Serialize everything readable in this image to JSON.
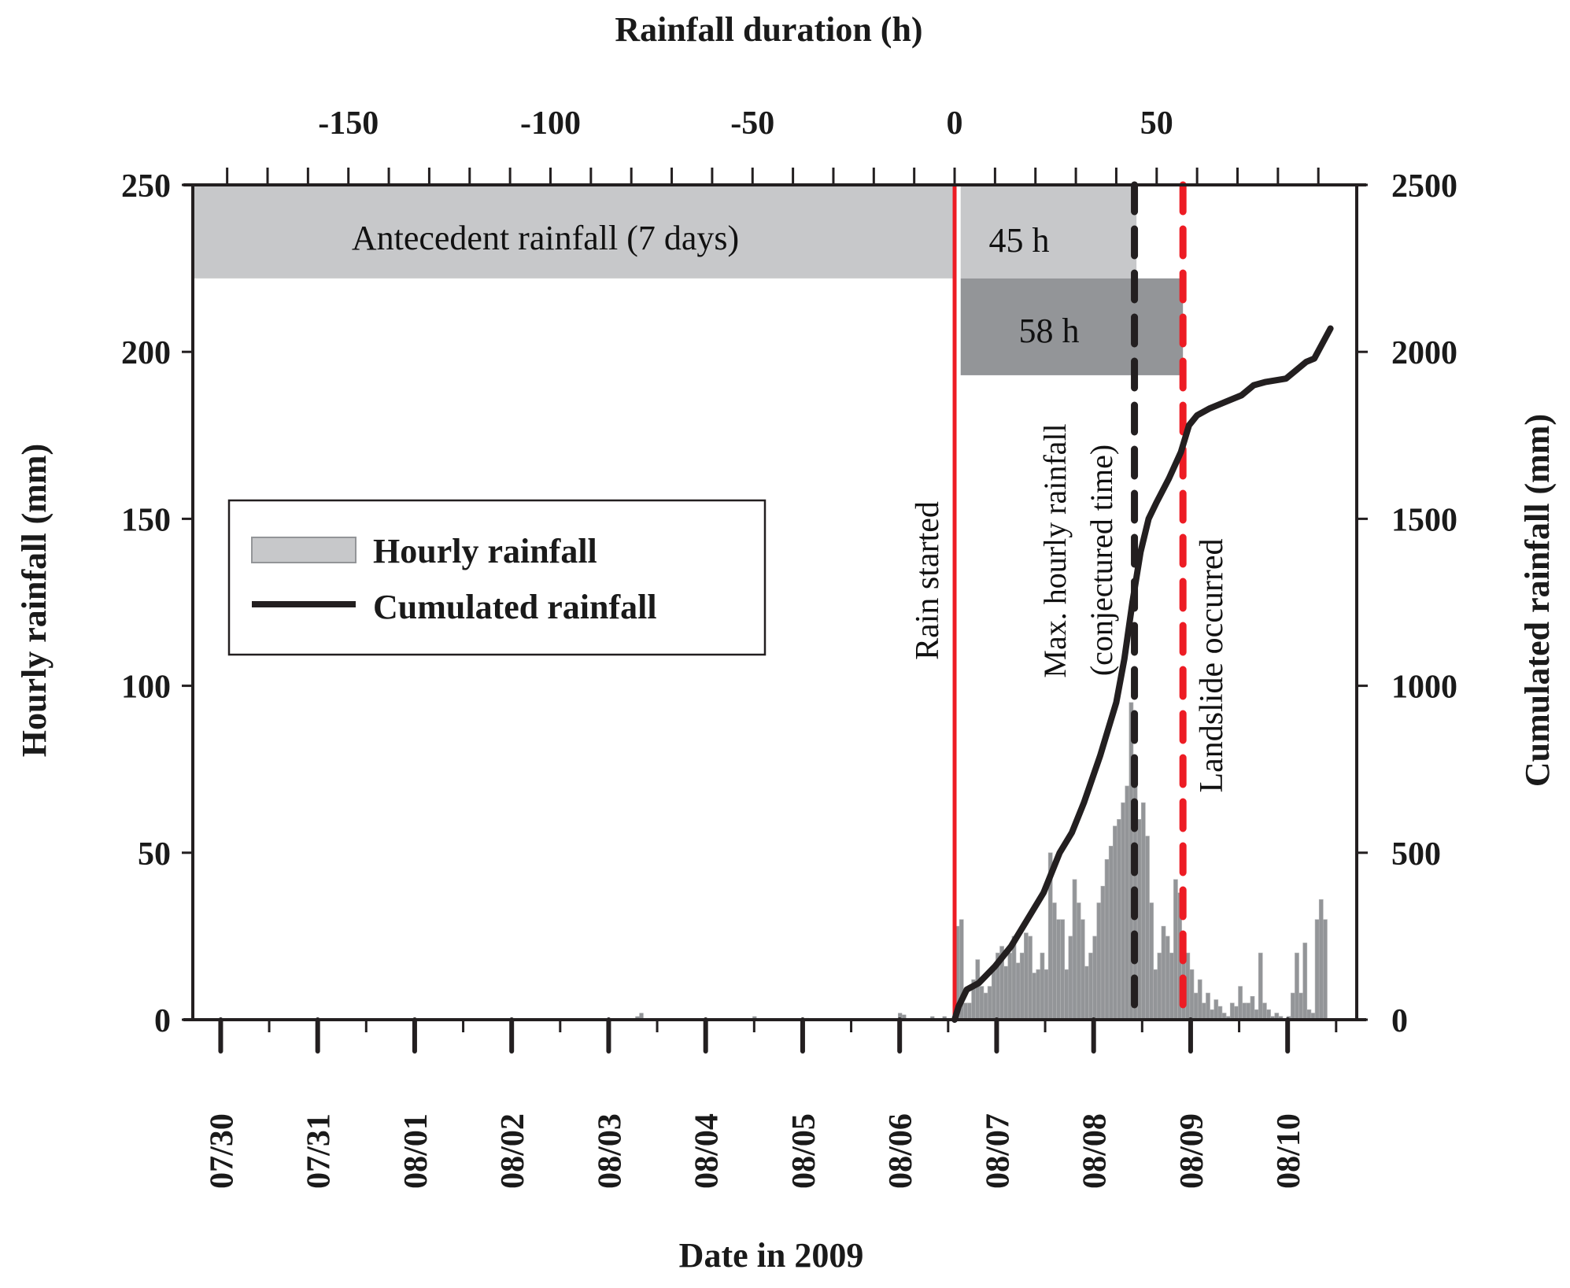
{
  "chart_data": {
    "type": "bar",
    "title": "",
    "top_xlabel": "Rainfall duration (h)",
    "xlabel": "Date in 2009",
    "ylabel": "Hourly rainfall (mm)",
    "y2label": "Cumulated rainfall (mm)",
    "xlim_hours": [
      -188.5,
      99.5
    ],
    "ylim": [
      0,
      250
    ],
    "y2lim": [
      0,
      2500
    ],
    "top_ticks": [
      -150,
      -100,
      -50,
      0,
      50
    ],
    "top_tick_labels": [
      "-150",
      "-100",
      "-50",
      "0",
      "50"
    ],
    "y_ticks": [
      0,
      50,
      100,
      150,
      200,
      250
    ],
    "y_tick_labels": [
      "0",
      "50",
      "100",
      "150",
      "200",
      "250"
    ],
    "y2_ticks": [
      0,
      500,
      1000,
      1500,
      2000,
      2500
    ],
    "y2_tick_labels": [
      "0",
      "500",
      "1000",
      "1500",
      "2000",
      "2500"
    ],
    "date_ticks": {
      "labels": [
        "07/30",
        "07/31",
        "08/01",
        "08/02",
        "08/03",
        "08/04",
        "08/05",
        "08/06",
        "08/07",
        "08/08",
        "08/09",
        "08/10"
      ],
      "first_tick_hour": -181.6,
      "hours_per_day": 24
    },
    "legend": {
      "position": "center-left",
      "entries": [
        {
          "label": "Hourly rainfall",
          "kind": "bar",
          "color": "#939598"
        },
        {
          "label": "Cumulated rainfall",
          "kind": "line",
          "color": "#231f20"
        }
      ]
    },
    "series": [
      {
        "name": "Hourly rainfall",
        "axis": "left",
        "pre_rain": {
          "hours": [
            -79,
            -78,
            -50,
            -37,
            -14,
            -13,
            -6,
            -3
          ],
          "values": [
            1,
            2,
            1,
            0.5,
            2,
            1.5,
            1,
            1
          ]
        },
        "start_hour": 0,
        "values": [
          28,
          30,
          5,
          5,
          12,
          18,
          10,
          8,
          10,
          15,
          20,
          22,
          16,
          20,
          25,
          17,
          20,
          26,
          25,
          14,
          15,
          20,
          15,
          50,
          35,
          30,
          30,
          15,
          25,
          42,
          35,
          30,
          16,
          20,
          25,
          35,
          40,
          48,
          52,
          58,
          60,
          65,
          70,
          95,
          75,
          60,
          65,
          55,
          35,
          15,
          20,
          28,
          25,
          20,
          42,
          38,
          22,
          20,
          15,
          8,
          12,
          5,
          8,
          3,
          6,
          4,
          2,
          1,
          5,
          4,
          10,
          5,
          5,
          7,
          3,
          20,
          5,
          3,
          1,
          2,
          1,
          0,
          1,
          8,
          20,
          8,
          23,
          3,
          2,
          30,
          36,
          30
        ]
      },
      {
        "name": "Cumulated rainfall",
        "axis": "right",
        "hours": [
          0,
          1,
          3,
          6,
          10,
          14,
          18,
          22,
          26,
          29,
          32,
          34,
          36,
          38,
          40,
          42,
          44,
          46,
          48,
          50,
          53,
          56,
          58,
          60,
          63,
          67,
          71,
          74,
          77,
          82,
          85,
          87,
          89,
          93
        ],
        "values": [
          0,
          40,
          90,
          110,
          160,
          220,
          300,
          380,
          500,
          560,
          650,
          720,
          790,
          870,
          950,
          1080,
          1250,
          1400,
          1500,
          1550,
          1620,
          1700,
          1780,
          1810,
          1830,
          1850,
          1870,
          1900,
          1910,
          1920,
          1950,
          1970,
          1980,
          2070
        ]
      }
    ],
    "annotations": {
      "boxes": [
        {
          "label": "Antecedent rainfall (7 days)",
          "hour_range": [
            -188.5,
            0
          ],
          "y_range": [
            222,
            250
          ],
          "color": "#c7c8ca"
        },
        {
          "label": "45 h",
          "hour_range": [
            1.5,
            45
          ],
          "y_range": [
            222,
            250
          ],
          "color": "#c7c8ca"
        },
        {
          "label": "58 h",
          "hour_range": [
            1.5,
            56.5
          ],
          "y_range": [
            193,
            222
          ],
          "color": "#939598"
        }
      ],
      "vlines": [
        {
          "label": "Rain started",
          "hour": 0,
          "style": "solid",
          "color": "#ed1c24"
        },
        {
          "label": "Max. hourly rainfall",
          "label2": "(conjectured time)",
          "hour": 44.5,
          "style": "dashed",
          "color": "#231f20"
        },
        {
          "label": "Landslide occurred",
          "hour": 56.5,
          "style": "dashed",
          "color": "#ed1c24"
        }
      ]
    }
  }
}
